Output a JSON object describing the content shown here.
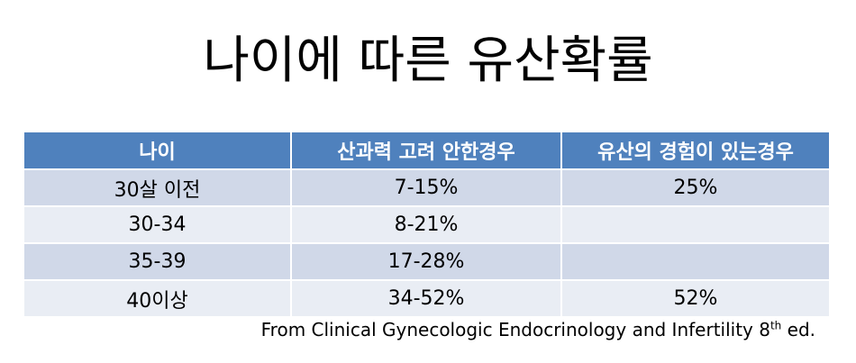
{
  "header": {
    "title": "나이에 따른 유산확률"
  },
  "table": {
    "columns": [
      "나이",
      "산과력 고려 안한경우",
      "유산의 경험이 있는경우"
    ],
    "rows": [
      [
        "30살 이전",
        "7-15%",
        "25%"
      ],
      [
        "30-34",
        "8-21%",
        null
      ],
      [
        "35-39",
        "17-28%",
        null
      ],
      [
        "40이상",
        "34-52%",
        "52%"
      ]
    ]
  },
  "source": {
    "text": "From Clinical Gynecologic Endocrinology and Infertility 8",
    "sup": "th",
    "end": "ed."
  }
}
